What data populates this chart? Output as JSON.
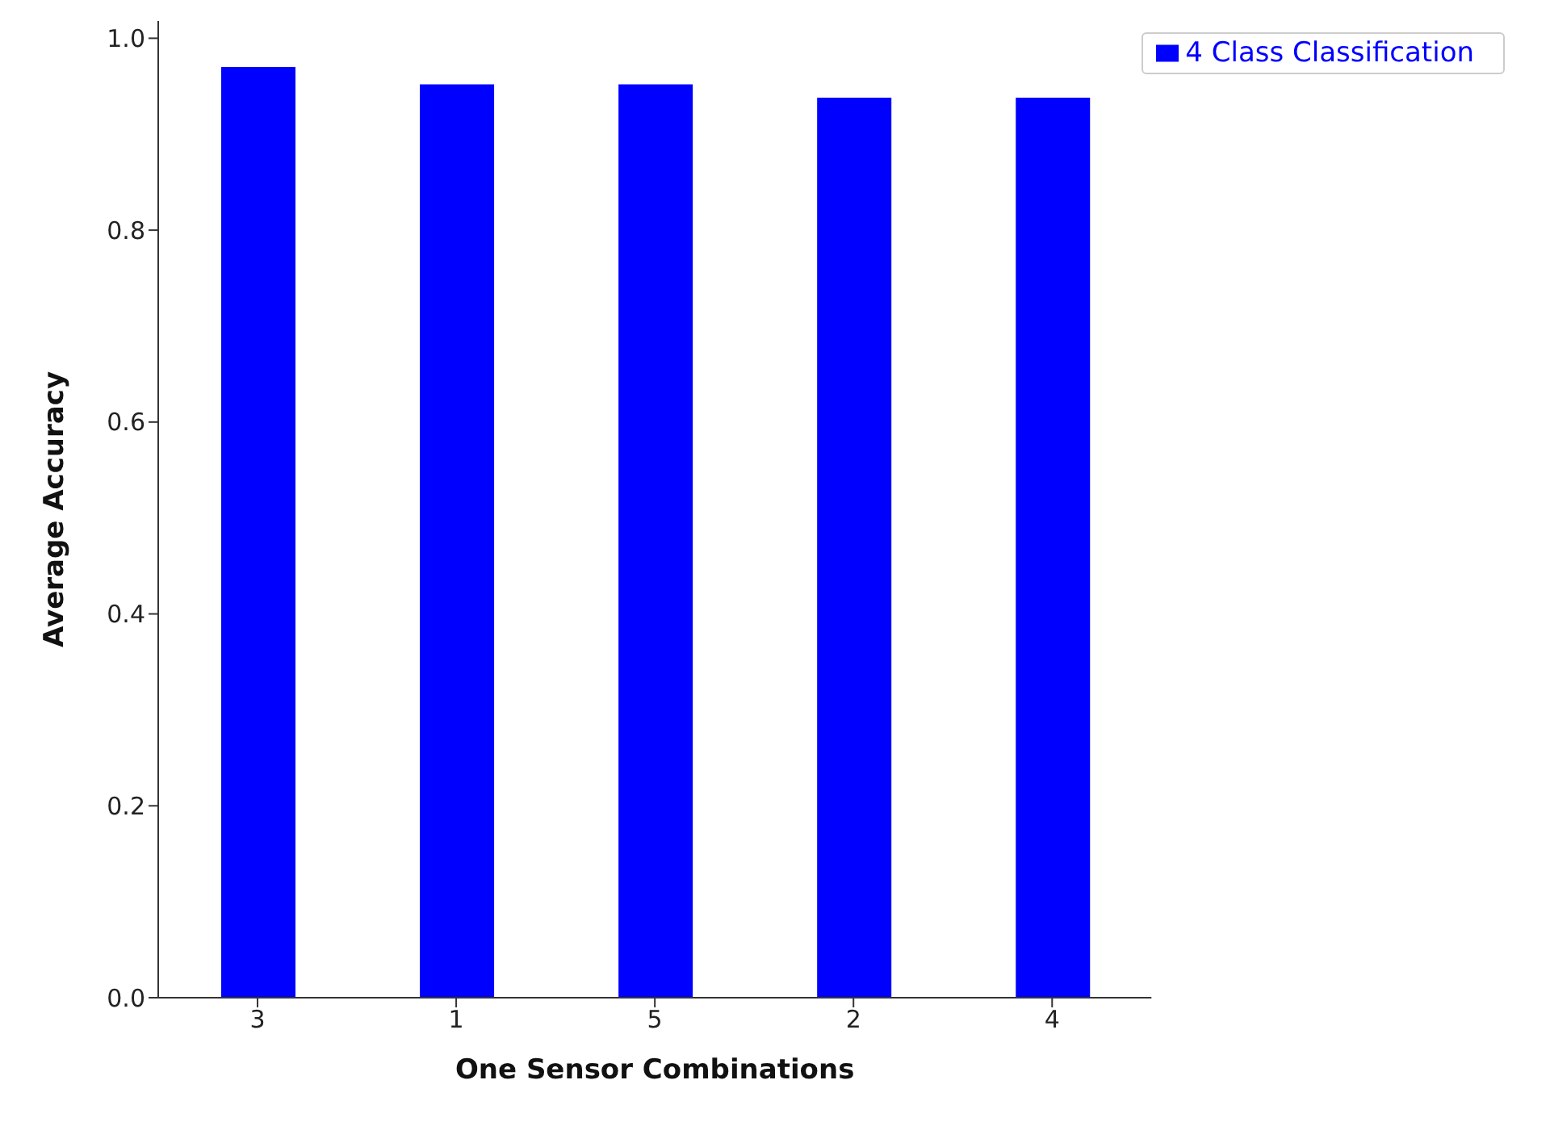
{
  "chart_data": {
    "type": "bar",
    "xlabel": "One Sensor Combinations",
    "ylabel": "Average Accuracy",
    "categories": [
      "3",
      "1",
      "5",
      "2",
      "4"
    ],
    "series": [
      {
        "name": "4 Class Classification",
        "color": "#0000ff",
        "values": [
          0.97,
          0.952,
          0.952,
          0.938,
          0.938
        ]
      }
    ],
    "ylim": [
      0,
      1.018
    ],
    "yticks": [
      {
        "value": 0,
        "label": "0.0"
      },
      {
        "value": 0.2,
        "label": "0.2"
      },
      {
        "value": 0.4,
        "label": "0.4"
      },
      {
        "value": 0.6,
        "label": "0.6"
      },
      {
        "value": 0.8,
        "label": "0.8"
      },
      {
        "value": 1,
        "label": "1.0"
      }
    ],
    "grid": false,
    "legend": "top right"
  }
}
